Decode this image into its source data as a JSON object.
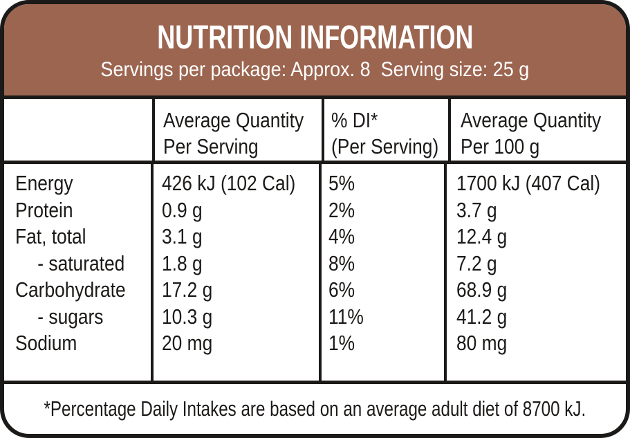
{
  "colors": {
    "band_brown": "#9c6550",
    "ink_black": "#1c1a18",
    "paper_white": "#ffffff"
  },
  "header": {
    "title": "NUTRITION INFORMATION",
    "subtitle": "Servings per package: Approx. 8  Serving size: 25 g"
  },
  "table": {
    "headers": [
      {
        "line1": "Average Quantity",
        "line2": "Per Serving"
      },
      {
        "line1": "% DI*",
        "line2": "(Per Serving)"
      },
      {
        "line1": "Average Quantity",
        "line2": "Per 100 g"
      }
    ],
    "rows": [
      {
        "nutrient": "Energy",
        "per_serving": "426 kJ (102 Cal)",
        "di": "5%",
        "per_100g": "1700 kJ (407 Cal)"
      },
      {
        "nutrient": "Protein",
        "per_serving": "0.9 g",
        "di": "2%",
        "per_100g": "3.7 g"
      },
      {
        "nutrient": "Fat, total",
        "per_serving": "3.1 g",
        "di": "4%",
        "per_100g": "12.4 g"
      },
      {
        "nutrient": "- saturated",
        "per_serving": "1.8 g",
        "di": "8%",
        "per_100g": "7.2 g"
      },
      {
        "nutrient": "Carbohydrate",
        "per_serving": "17.2 g",
        "di": "6%",
        "per_100g": "68.9 g"
      },
      {
        "nutrient": "- sugars",
        "per_serving": "10.3 g",
        "di": "11%",
        "per_100g": "41.2 g"
      },
      {
        "nutrient": "Sodium",
        "per_serving": "20 mg",
        "di": "1%",
        "per_100g": "80 mg"
      }
    ]
  },
  "footnote": "*Percentage Daily Intakes are based on an average adult diet of 8700 kJ."
}
